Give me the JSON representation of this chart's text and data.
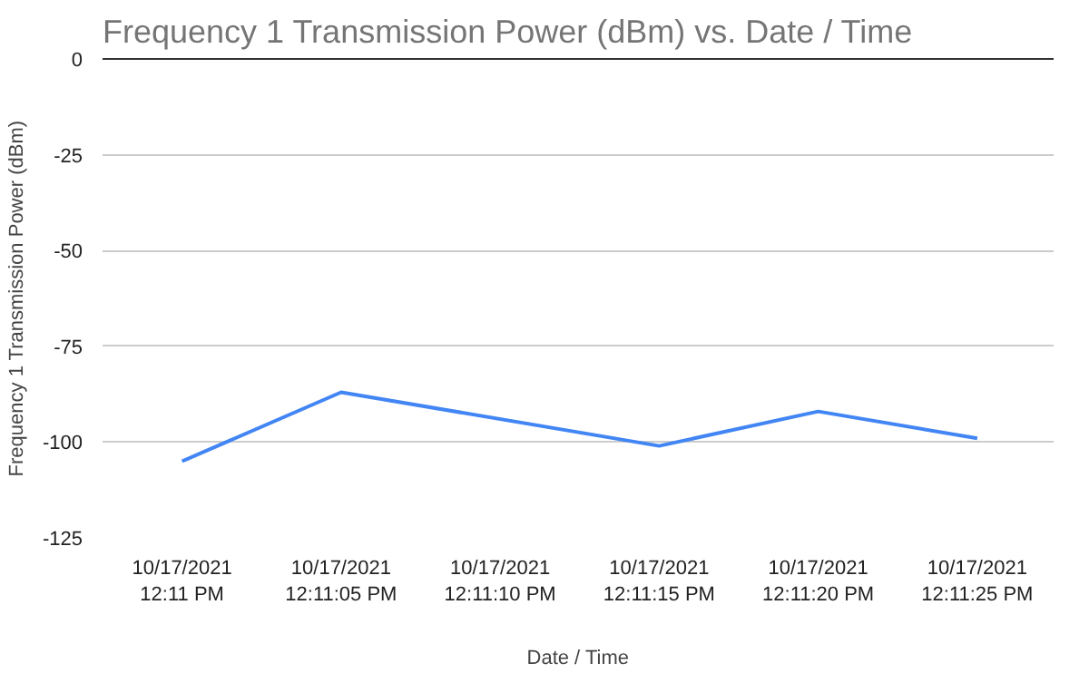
{
  "chart_data": {
    "type": "line",
    "title": "Frequency 1 Transmission Power (dBm) vs. Date / Time",
    "xlabel": "Date / Time",
    "ylabel": "Frequency 1 Transmission Power (dBm)",
    "x": [
      "2021-10-17T12:11:00",
      "2021-10-17T12:11:05",
      "2021-10-17T12:11:15",
      "2021-10-17T12:11:20",
      "2021-10-17T12:11:25"
    ],
    "series": [
      {
        "color": "#4285f4",
        "values": [
          -105,
          -87,
          -101,
          -92,
          -99
        ]
      }
    ],
    "xlim": [
      "2021-10-17T12:10:57.5",
      "2021-10-17T12:11:27.4"
    ],
    "xticks": [
      {
        "value": "2021-10-17T12:11:00",
        "label": "10/17/2021\n12:11 PM"
      },
      {
        "value": "2021-10-17T12:11:05",
        "label": "10/17/2021\n12:11:05 PM"
      },
      {
        "value": "2021-10-17T12:11:10",
        "label": "10/17/2021\n12:11:10 PM"
      },
      {
        "value": "2021-10-17T12:11:15",
        "label": "10/17/2021\n12:11:15 PM"
      },
      {
        "value": "2021-10-17T12:11:20",
        "label": "10/17/2021\n12:11:20 PM"
      },
      {
        "value": "2021-10-17T12:11:25",
        "label": "10/17/2021\n12:11:25 PM"
      }
    ],
    "ylim": [
      -125,
      0
    ],
    "yticks": [
      -125,
      -100,
      -75,
      -50,
      -25,
      0
    ],
    "grid": "y",
    "marker": "none",
    "line_style": "solid"
  }
}
